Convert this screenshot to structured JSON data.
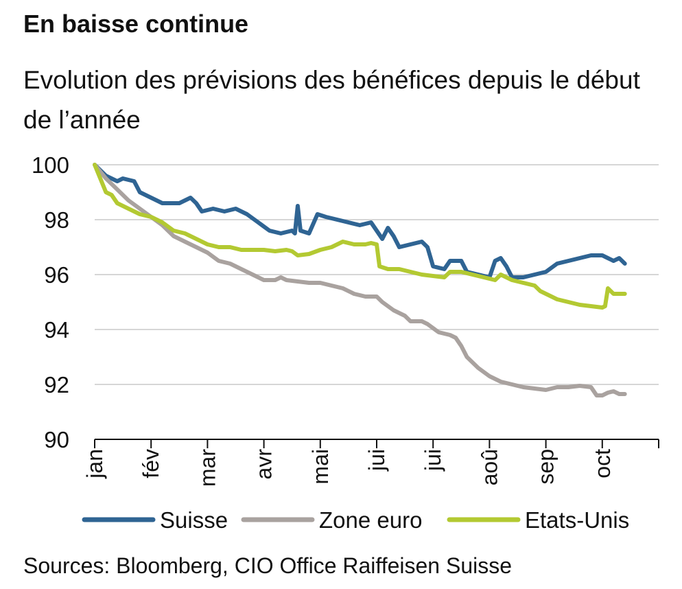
{
  "chart_data": {
    "type": "line",
    "title": "En baisse continue",
    "subtitle": "Evolution des prévisions des bénéfices depuis le début de l’année",
    "x_tick_labels": [
      "jan",
      "fév",
      "mar",
      "avr",
      "mai",
      "jui",
      "jui",
      "aoû",
      "sep",
      "oct"
    ],
    "ylim": [
      90,
      100
    ],
    "y_ticks": [
      90,
      92,
      94,
      96,
      98,
      100
    ],
    "grid": "horizontal",
    "legend_position": "bottom",
    "series": [
      {
        "name": "Suisse",
        "color": "#2f6493",
        "points": [
          [
            0.0,
            100.0
          ],
          [
            0.2,
            99.6
          ],
          [
            0.4,
            99.4
          ],
          [
            0.5,
            99.5
          ],
          [
            0.7,
            99.4
          ],
          [
            0.8,
            99.0
          ],
          [
            1.0,
            98.8
          ],
          [
            1.2,
            98.6
          ],
          [
            1.5,
            98.6
          ],
          [
            1.6,
            98.7
          ],
          [
            1.7,
            98.8
          ],
          [
            1.8,
            98.6
          ],
          [
            1.9,
            98.3
          ],
          [
            2.1,
            98.4
          ],
          [
            2.3,
            98.3
          ],
          [
            2.5,
            98.4
          ],
          [
            2.7,
            98.2
          ],
          [
            2.9,
            97.9
          ],
          [
            3.1,
            97.6
          ],
          [
            3.3,
            97.5
          ],
          [
            3.5,
            97.6
          ],
          [
            3.55,
            97.5
          ],
          [
            3.6,
            98.5
          ],
          [
            3.65,
            97.6
          ],
          [
            3.8,
            97.5
          ],
          [
            3.95,
            98.2
          ],
          [
            4.1,
            98.1
          ],
          [
            4.3,
            98.0
          ],
          [
            4.5,
            97.9
          ],
          [
            4.7,
            97.8
          ],
          [
            4.9,
            97.9
          ],
          [
            5.0,
            97.6
          ],
          [
            5.1,
            97.3
          ],
          [
            5.2,
            97.7
          ],
          [
            5.3,
            97.4
          ],
          [
            5.4,
            97.0
          ],
          [
            5.6,
            97.1
          ],
          [
            5.8,
            97.2
          ],
          [
            5.9,
            97.0
          ],
          [
            6.0,
            96.3
          ],
          [
            6.2,
            96.2
          ],
          [
            6.3,
            96.5
          ],
          [
            6.5,
            96.5
          ],
          [
            6.6,
            96.1
          ],
          [
            6.8,
            96.0
          ],
          [
            7.0,
            95.9
          ],
          [
            7.1,
            96.5
          ],
          [
            7.2,
            96.6
          ],
          [
            7.3,
            96.3
          ],
          [
            7.4,
            95.9
          ],
          [
            7.6,
            95.9
          ],
          [
            7.8,
            96.0
          ],
          [
            8.0,
            96.1
          ],
          [
            8.2,
            96.4
          ],
          [
            8.4,
            96.5
          ],
          [
            8.6,
            96.6
          ],
          [
            8.8,
            96.7
          ],
          [
            9.0,
            96.7
          ],
          [
            9.1,
            96.6
          ],
          [
            9.2,
            96.5
          ],
          [
            9.3,
            96.6
          ],
          [
            9.4,
            96.4
          ]
        ]
      },
      {
        "name": "Zone euro",
        "color": "#a9a29f",
        "points": [
          [
            0.0,
            100.0
          ],
          [
            0.2,
            99.5
          ],
          [
            0.4,
            99.1
          ],
          [
            0.6,
            98.7
          ],
          [
            0.8,
            98.4
          ],
          [
            1.0,
            98.1
          ],
          [
            1.2,
            97.8
          ],
          [
            1.4,
            97.4
          ],
          [
            1.6,
            97.2
          ],
          [
            1.8,
            97.0
          ],
          [
            2.0,
            96.8
          ],
          [
            2.2,
            96.5
          ],
          [
            2.4,
            96.4
          ],
          [
            2.6,
            96.2
          ],
          [
            2.8,
            96.0
          ],
          [
            3.0,
            95.8
          ],
          [
            3.2,
            95.8
          ],
          [
            3.3,
            95.9
          ],
          [
            3.4,
            95.8
          ],
          [
            3.6,
            95.75
          ],
          [
            3.8,
            95.7
          ],
          [
            4.0,
            95.7
          ],
          [
            4.2,
            95.6
          ],
          [
            4.4,
            95.5
          ],
          [
            4.6,
            95.3
          ],
          [
            4.8,
            95.2
          ],
          [
            5.0,
            95.2
          ],
          [
            5.1,
            95.0
          ],
          [
            5.3,
            94.7
          ],
          [
            5.5,
            94.5
          ],
          [
            5.6,
            94.3
          ],
          [
            5.8,
            94.3
          ],
          [
            5.9,
            94.2
          ],
          [
            6.1,
            93.9
          ],
          [
            6.3,
            93.8
          ],
          [
            6.4,
            93.7
          ],
          [
            6.5,
            93.4
          ],
          [
            6.6,
            93.0
          ],
          [
            6.8,
            92.6
          ],
          [
            7.0,
            92.3
          ],
          [
            7.2,
            92.1
          ],
          [
            7.4,
            92.0
          ],
          [
            7.6,
            91.9
          ],
          [
            7.8,
            91.85
          ],
          [
            8.0,
            91.8
          ],
          [
            8.2,
            91.9
          ],
          [
            8.4,
            91.9
          ],
          [
            8.6,
            91.95
          ],
          [
            8.8,
            91.9
          ],
          [
            8.9,
            91.6
          ],
          [
            9.0,
            91.6
          ],
          [
            9.1,
            91.7
          ],
          [
            9.2,
            91.75
          ],
          [
            9.3,
            91.65
          ],
          [
            9.4,
            91.65
          ]
        ]
      },
      {
        "name": "Etats-Unis",
        "color": "#b3c932",
        "points": [
          [
            0.0,
            100.0
          ],
          [
            0.1,
            99.5
          ],
          [
            0.2,
            99.0
          ],
          [
            0.3,
            98.9
          ],
          [
            0.4,
            98.6
          ],
          [
            0.5,
            98.5
          ],
          [
            0.6,
            98.4
          ],
          [
            0.8,
            98.2
          ],
          [
            1.0,
            98.1
          ],
          [
            1.2,
            97.9
          ],
          [
            1.4,
            97.6
          ],
          [
            1.6,
            97.5
          ],
          [
            1.8,
            97.3
          ],
          [
            2.0,
            97.1
          ],
          [
            2.2,
            97.0
          ],
          [
            2.4,
            97.0
          ],
          [
            2.6,
            96.9
          ],
          [
            2.8,
            96.9
          ],
          [
            3.0,
            96.9
          ],
          [
            3.2,
            96.85
          ],
          [
            3.4,
            96.9
          ],
          [
            3.5,
            96.85
          ],
          [
            3.6,
            96.7
          ],
          [
            3.8,
            96.75
          ],
          [
            4.0,
            96.9
          ],
          [
            4.2,
            97.0
          ],
          [
            4.4,
            97.2
          ],
          [
            4.6,
            97.1
          ],
          [
            4.8,
            97.1
          ],
          [
            4.9,
            97.15
          ],
          [
            5.0,
            97.1
          ],
          [
            5.05,
            96.3
          ],
          [
            5.2,
            96.2
          ],
          [
            5.4,
            96.2
          ],
          [
            5.6,
            96.1
          ],
          [
            5.8,
            96.0
          ],
          [
            6.0,
            95.95
          ],
          [
            6.2,
            95.9
          ],
          [
            6.3,
            96.1
          ],
          [
            6.5,
            96.1
          ],
          [
            6.7,
            96.0
          ],
          [
            6.9,
            95.9
          ],
          [
            7.0,
            95.85
          ],
          [
            7.1,
            95.8
          ],
          [
            7.2,
            96.0
          ],
          [
            7.4,
            95.8
          ],
          [
            7.6,
            95.7
          ],
          [
            7.8,
            95.6
          ],
          [
            7.9,
            95.4
          ],
          [
            8.0,
            95.3
          ],
          [
            8.2,
            95.1
          ],
          [
            8.4,
            95.0
          ],
          [
            8.6,
            94.9
          ],
          [
            8.8,
            94.85
          ],
          [
            9.0,
            94.8
          ],
          [
            9.05,
            94.85
          ],
          [
            9.1,
            95.5
          ],
          [
            9.2,
            95.3
          ],
          [
            9.4,
            95.3
          ]
        ]
      }
    ]
  },
  "source": "Sources: Bloomberg, CIO Office Raiffeisen Suisse"
}
